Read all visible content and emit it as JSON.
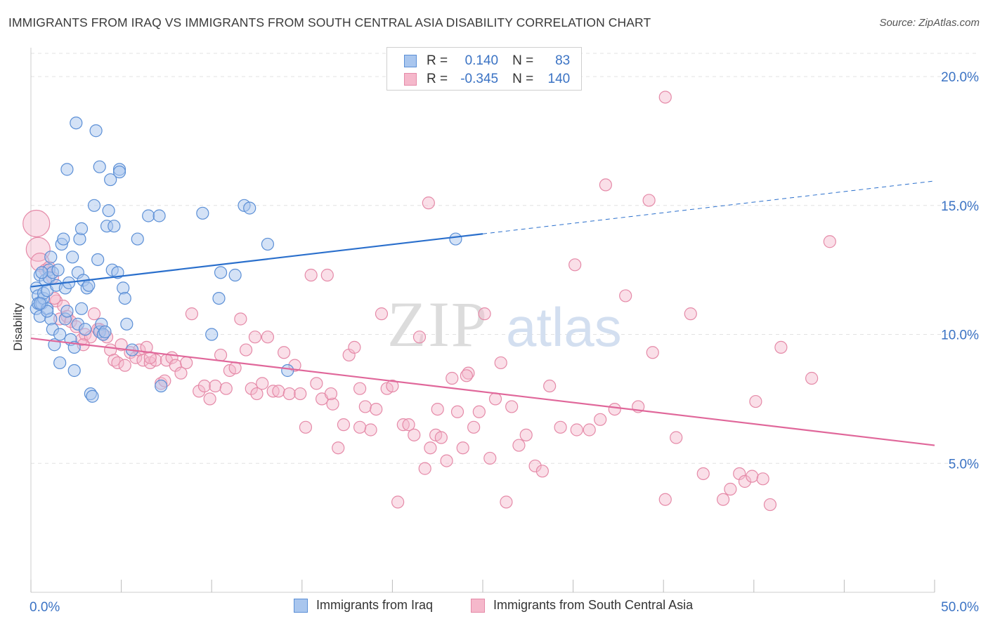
{
  "title": "IMMIGRANTS FROM IRAQ VS IMMIGRANTS FROM SOUTH CENTRAL ASIA DISABILITY CORRELATION CHART",
  "source": "Source: ZipAtlas.com",
  "watermark": {
    "zip": "ZIP",
    "atlas": "atlas"
  },
  "legend": {
    "rows": [
      {
        "r_label": "R =",
        "r_value": "0.140",
        "n_label": "N =",
        "n_value": "83"
      },
      {
        "r_label": "R =",
        "r_value": "-0.345",
        "n_label": "N =",
        "n_value": "140"
      }
    ]
  },
  "colors": {
    "iraq_fill": "#a9c6ee",
    "iraq_stroke": "#5b8fd6",
    "iraq_line": "#2a6fcc",
    "sca_fill": "#f5b8cb",
    "sca_stroke": "#e58aa8",
    "sca_line": "#e0679a",
    "axis_text": "#3b73c4",
    "grid": "#e2e2e2"
  },
  "chart_data": {
    "type": "scatter",
    "xlabel": "",
    "ylabel": "Disability",
    "xlim": [
      0,
      50
    ],
    "ylim": [
      0,
      20.9
    ],
    "x_ticks": [
      {
        "value": 0,
        "label": "0.0%"
      },
      {
        "value": 50,
        "label": "50.0%"
      }
    ],
    "y_ticks": [
      {
        "value": 5,
        "label": "5.0%"
      },
      {
        "value": 10,
        "label": "10.0%"
      },
      {
        "value": 15,
        "label": "15.0%"
      },
      {
        "value": 20,
        "label": "20.0%"
      }
    ],
    "grid": true,
    "legend_position": "bottom",
    "series": [
      {
        "name": "Immigrants from Iraq",
        "color": "#5b8fd6",
        "trend": {
          "x0": 0,
          "y0": 11.85,
          "x1": 25,
          "y1": 13.9,
          "x_ext": 50,
          "y_ext": 15.95
        },
        "points": [
          [
            0.3,
            11.8
          ],
          [
            0.3,
            11.0
          ],
          [
            0.4,
            11.5
          ],
          [
            0.4,
            11.2
          ],
          [
            0.5,
            10.7
          ],
          [
            0.5,
            12.3
          ],
          [
            0.6,
            11.2
          ],
          [
            0.7,
            11.4
          ],
          [
            0.7,
            11.6
          ],
          [
            0.8,
            12.1
          ],
          [
            0.9,
            11.0
          ],
          [
            0.9,
            11.7
          ],
          [
            1.0,
            12.5
          ],
          [
            1.0,
            12.2
          ],
          [
            1.1,
            10.6
          ],
          [
            1.1,
            13.0
          ],
          [
            1.2,
            12.4
          ],
          [
            1.2,
            10.2
          ],
          [
            1.3,
            9.6
          ],
          [
            1.4,
            11.9
          ],
          [
            1.5,
            12.5
          ],
          [
            1.6,
            10.0
          ],
          [
            1.7,
            13.5
          ],
          [
            1.8,
            13.7
          ],
          [
            1.9,
            10.6
          ],
          [
            1.9,
            11.8
          ],
          [
            2.0,
            10.9
          ],
          [
            2.0,
            16.4
          ],
          [
            2.1,
            12.0
          ],
          [
            2.2,
            9.8
          ],
          [
            2.3,
            13.0
          ],
          [
            2.4,
            8.6
          ],
          [
            2.5,
            18.2
          ],
          [
            2.6,
            10.4
          ],
          [
            2.6,
            12.4
          ],
          [
            2.7,
            13.7
          ],
          [
            2.8,
            14.1
          ],
          [
            2.9,
            12.1
          ],
          [
            3.0,
            10.2
          ],
          [
            3.1,
            11.8
          ],
          [
            3.2,
            11.9
          ],
          [
            3.3,
            7.7
          ],
          [
            3.4,
            7.6
          ],
          [
            3.5,
            15.0
          ],
          [
            3.6,
            17.9
          ],
          [
            3.7,
            12.9
          ],
          [
            3.8,
            10.1
          ],
          [
            3.9,
            10.4
          ],
          [
            3.8,
            16.5
          ],
          [
            4.0,
            10.0
          ],
          [
            4.1,
            10.1
          ],
          [
            4.2,
            14.2
          ],
          [
            4.3,
            14.8
          ],
          [
            4.4,
            16.0
          ],
          [
            4.5,
            12.5
          ],
          [
            4.6,
            14.2
          ],
          [
            4.8,
            12.4
          ],
          [
            4.9,
            16.4
          ],
          [
            4.9,
            16.3
          ],
          [
            5.1,
            11.8
          ],
          [
            5.2,
            11.4
          ],
          [
            5.3,
            10.4
          ],
          [
            5.6,
            9.4
          ],
          [
            5.9,
            13.7
          ],
          [
            6.5,
            14.6
          ],
          [
            7.1,
            14.6
          ],
          [
            7.2,
            8.0
          ],
          [
            9.5,
            14.7
          ],
          [
            10.0,
            10.0
          ],
          [
            10.4,
            11.4
          ],
          [
            10.5,
            12.4
          ],
          [
            11.3,
            12.3
          ],
          [
            11.8,
            15.0
          ],
          [
            12.1,
            14.9
          ],
          [
            13.1,
            13.5
          ],
          [
            14.2,
            8.6
          ],
          [
            2.4,
            9.5
          ],
          [
            1.6,
            8.9
          ],
          [
            0.9,
            10.9
          ],
          [
            0.6,
            12.4
          ],
          [
            0.5,
            11.2
          ],
          [
            23.5,
            13.7
          ],
          [
            2.8,
            11.0
          ]
        ]
      },
      {
        "name": "Immigrants from South Central Asia",
        "color": "#e58aa8",
        "trend": {
          "x0": 0,
          "y0": 9.85,
          "x1": 50,
          "y1": 5.7
        },
        "points": [
          [
            0.3,
            14.3
          ],
          [
            0.4,
            13.3
          ],
          [
            0.5,
            12.8
          ],
          [
            0.8,
            12.5
          ],
          [
            1.0,
            12.6
          ],
          [
            1.2,
            12.2
          ],
          [
            1.4,
            11.3
          ],
          [
            1.6,
            10.6
          ],
          [
            1.8,
            11.1
          ],
          [
            2.0,
            10.7
          ],
          [
            2.2,
            10.5
          ],
          [
            2.5,
            10.3
          ],
          [
            2.8,
            9.8
          ],
          [
            3.0,
            10.0
          ],
          [
            3.3,
            9.9
          ],
          [
            3.5,
            10.8
          ],
          [
            3.8,
            10.2
          ],
          [
            4.0,
            10.0
          ],
          [
            4.2,
            9.9
          ],
          [
            4.4,
            9.4
          ],
          [
            4.6,
            9.0
          ],
          [
            4.8,
            8.9
          ],
          [
            5.0,
            9.6
          ],
          [
            5.2,
            8.8
          ],
          [
            5.5,
            9.3
          ],
          [
            5.8,
            9.1
          ],
          [
            6.0,
            9.4
          ],
          [
            6.2,
            9.0
          ],
          [
            6.4,
            9.5
          ],
          [
            6.6,
            8.9
          ],
          [
            6.9,
            9.0
          ],
          [
            7.2,
            8.1
          ],
          [
            7.5,
            9.0
          ],
          [
            7.8,
            9.1
          ],
          [
            8.0,
            8.8
          ],
          [
            8.3,
            8.5
          ],
          [
            8.6,
            8.9
          ],
          [
            8.9,
            10.8
          ],
          [
            9.3,
            7.8
          ],
          [
            9.6,
            8.0
          ],
          [
            9.9,
            7.5
          ],
          [
            10.2,
            8.0
          ],
          [
            10.5,
            9.2
          ],
          [
            10.8,
            7.9
          ],
          [
            11.0,
            8.6
          ],
          [
            11.3,
            8.7
          ],
          [
            11.6,
            10.6
          ],
          [
            11.9,
            9.4
          ],
          [
            12.2,
            7.9
          ],
          [
            12.5,
            7.7
          ],
          [
            12.8,
            8.1
          ],
          [
            13.1,
            9.9
          ],
          [
            13.4,
            7.8
          ],
          [
            13.7,
            7.8
          ],
          [
            14.0,
            9.3
          ],
          [
            14.3,
            7.7
          ],
          [
            14.6,
            8.8
          ],
          [
            14.9,
            7.7
          ],
          [
            15.2,
            6.4
          ],
          [
            15.5,
            12.3
          ],
          [
            15.8,
            8.1
          ],
          [
            16.1,
            7.5
          ],
          [
            16.4,
            12.3
          ],
          [
            16.7,
            7.3
          ],
          [
            17.0,
            5.6
          ],
          [
            17.3,
            6.5
          ],
          [
            17.6,
            9.2
          ],
          [
            17.9,
            9.5
          ],
          [
            18.2,
            7.9
          ],
          [
            18.5,
            7.2
          ],
          [
            18.8,
            6.3
          ],
          [
            19.1,
            7.1
          ],
          [
            19.4,
            10.8
          ],
          [
            19.7,
            7.9
          ],
          [
            20.0,
            8.0
          ],
          [
            20.3,
            3.5
          ],
          [
            20.6,
            6.5
          ],
          [
            20.9,
            6.5
          ],
          [
            21.2,
            6.1
          ],
          [
            21.5,
            9.9
          ],
          [
            21.8,
            4.8
          ],
          [
            22.0,
            15.1
          ],
          [
            22.1,
            5.6
          ],
          [
            22.4,
            6.1
          ],
          [
            22.7,
            6.0
          ],
          [
            23.0,
            5.1
          ],
          [
            23.3,
            8.3
          ],
          [
            23.6,
            7.0
          ],
          [
            23.9,
            5.6
          ],
          [
            24.2,
            8.5
          ],
          [
            24.5,
            6.4
          ],
          [
            24.8,
            7.0
          ],
          [
            25.1,
            10.8
          ],
          [
            25.4,
            5.2
          ],
          [
            25.7,
            7.5
          ],
          [
            26.0,
            8.9
          ],
          [
            26.3,
            3.5
          ],
          [
            26.6,
            7.2
          ],
          [
            27.0,
            5.7
          ],
          [
            27.4,
            6.1
          ],
          [
            27.9,
            4.9
          ],
          [
            28.3,
            4.7
          ],
          [
            28.7,
            8.0
          ],
          [
            29.3,
            6.4
          ],
          [
            30.1,
            12.7
          ],
          [
            30.9,
            6.3
          ],
          [
            31.5,
            6.7
          ],
          [
            31.8,
            15.8
          ],
          [
            32.3,
            7.1
          ],
          [
            32.9,
            11.5
          ],
          [
            33.6,
            7.2
          ],
          [
            34.4,
            9.3
          ],
          [
            35.1,
            3.6
          ],
          [
            35.7,
            6.0
          ],
          [
            36.5,
            10.8
          ],
          [
            37.2,
            4.6
          ],
          [
            38.3,
            3.6
          ],
          [
            38.7,
            4.0
          ],
          [
            39.2,
            4.6
          ],
          [
            39.5,
            4.3
          ],
          [
            39.9,
            4.5
          ],
          [
            40.1,
            7.4
          ],
          [
            40.5,
            4.4
          ],
          [
            40.9,
            3.4
          ],
          [
            41.5,
            9.5
          ],
          [
            43.2,
            8.3
          ],
          [
            44.2,
            13.6
          ],
          [
            35.1,
            19.2
          ],
          [
            34.2,
            15.2
          ],
          [
            30.2,
            6.3
          ],
          [
            12.4,
            9.9
          ],
          [
            7.4,
            8.2
          ],
          [
            6.6,
            9.1
          ],
          [
            3.7,
            10.2
          ],
          [
            2.9,
            9.6
          ],
          [
            1.3,
            11.4
          ],
          [
            16.6,
            7.7
          ],
          [
            18.2,
            6.4
          ],
          [
            22.5,
            7.1
          ],
          [
            24.1,
            8.4
          ]
        ]
      }
    ]
  },
  "bottom_legend": [
    "Immigrants from Iraq",
    "Immigrants from South Central Asia"
  ]
}
